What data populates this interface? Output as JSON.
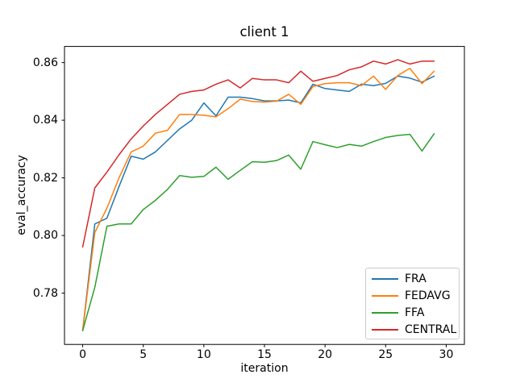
{
  "figure": {
    "background": "#ffffff"
  },
  "chart_data": {
    "type": "line",
    "title": "client 1",
    "xlabel": "iteration",
    "ylabel": "eval_accuracy",
    "xlim": [
      -1.5,
      31.5
    ],
    "ylim": [
      0.7622,
      0.8656
    ],
    "grid": false,
    "legend_position": "lower right",
    "x": [
      0,
      1,
      2,
      3,
      4,
      5,
      6,
      7,
      8,
      9,
      10,
      11,
      12,
      13,
      14,
      15,
      16,
      17,
      18,
      19,
      20,
      21,
      22,
      23,
      24,
      25,
      26,
      27,
      28,
      29
    ],
    "xticks": [
      {
        "v": 0,
        "label": "0"
      },
      {
        "v": 5,
        "label": "5"
      },
      {
        "v": 10,
        "label": "10"
      },
      {
        "v": 15,
        "label": "15"
      },
      {
        "v": 20,
        "label": "20"
      },
      {
        "v": 25,
        "label": "25"
      },
      {
        "v": 30,
        "label": "30"
      }
    ],
    "yticks": [
      {
        "v": 0.78,
        "label": "0.78"
      },
      {
        "v": 0.8,
        "label": "0.80"
      },
      {
        "v": 0.82,
        "label": "0.82"
      },
      {
        "v": 0.84,
        "label": "0.84"
      },
      {
        "v": 0.86,
        "label": "0.86"
      }
    ],
    "series": [
      {
        "name": "FRA",
        "color": "#1f77b4",
        "values": [
          0.767,
          0.804,
          0.806,
          0.817,
          0.8275,
          0.8265,
          0.829,
          0.833,
          0.837,
          0.84,
          0.846,
          0.8415,
          0.848,
          0.848,
          0.8475,
          0.8467,
          0.8467,
          0.847,
          0.846,
          0.8525,
          0.851,
          0.8505,
          0.85,
          0.8525,
          0.852,
          0.8528,
          0.8553,
          0.8546,
          0.8532,
          0.8553
        ]
      },
      {
        "name": "FEDAVG",
        "color": "#ff7f0e",
        "values": [
          0.767,
          0.801,
          0.8095,
          0.82,
          0.829,
          0.831,
          0.8355,
          0.8365,
          0.842,
          0.842,
          0.8417,
          0.8412,
          0.844,
          0.8473,
          0.8465,
          0.8463,
          0.8466,
          0.849,
          0.8455,
          0.8517,
          0.8527,
          0.853,
          0.853,
          0.852,
          0.8553,
          0.8507,
          0.8555,
          0.858,
          0.8527,
          0.857
        ]
      },
      {
        "name": "FFA",
        "color": "#2ca02c",
        "values": [
          0.767,
          0.782,
          0.8032,
          0.804,
          0.804,
          0.809,
          0.8122,
          0.816,
          0.8208,
          0.8202,
          0.8205,
          0.8237,
          0.8195,
          0.8226,
          0.8256,
          0.8254,
          0.826,
          0.8279,
          0.823,
          0.8326,
          0.8315,
          0.8305,
          0.8316,
          0.831,
          0.8326,
          0.834,
          0.8347,
          0.8351,
          0.8293,
          0.8353
        ]
      },
      {
        "name": "CENTRAL",
        "color": "#d62728",
        "values": [
          0.796,
          0.8165,
          0.822,
          0.828,
          0.8335,
          0.838,
          0.842,
          0.8455,
          0.849,
          0.85,
          0.8505,
          0.8525,
          0.854,
          0.8512,
          0.8545,
          0.854,
          0.854,
          0.853,
          0.857,
          0.8535,
          0.8545,
          0.8555,
          0.8575,
          0.8585,
          0.8605,
          0.8595,
          0.861,
          0.8595,
          0.8605,
          0.8605
        ]
      }
    ]
  }
}
